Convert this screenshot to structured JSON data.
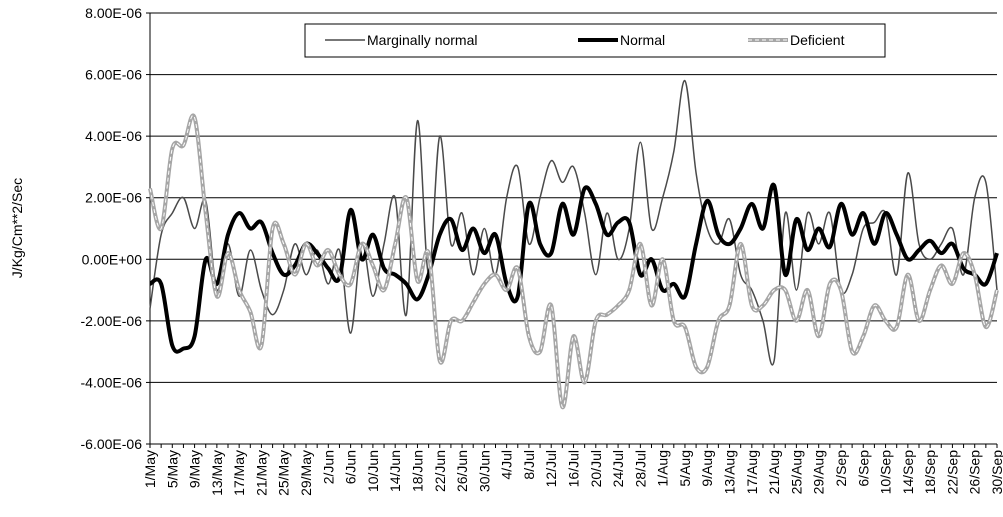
{
  "chart_data": {
    "type": "line",
    "y_label": "J/Kg/Cm**2/Sec",
    "categories": [
      "1/May",
      null,
      "5/May",
      null,
      "9/May",
      null,
      "13/May",
      null,
      "17/May",
      null,
      "21/May",
      null,
      "25/May",
      null,
      "29/May",
      null,
      "2/Jun",
      null,
      "6/Jun",
      null,
      "10/Jun",
      null,
      "14/Jun",
      null,
      "18/Jun",
      null,
      "22/Jun",
      null,
      "26/Jun",
      null,
      "30/Jun",
      null,
      "4/Jul",
      null,
      "8/Jul",
      null,
      "12/Jul",
      null,
      "16/Jul",
      null,
      "20/Jul",
      null,
      "24/Jul",
      null,
      "28/Jul",
      null,
      "1/Aug",
      null,
      "5/Aug",
      null,
      "9/Aug",
      null,
      "13/Aug",
      null,
      "17/Aug",
      null,
      "21/Aug",
      null,
      "25/Aug",
      null,
      "29/Aug",
      null,
      "2/Sep",
      null,
      "6/Sep",
      null,
      "10/Sep",
      null,
      "14/Sep",
      null,
      "18/Sep",
      null,
      "22/Sep",
      null,
      "26/Sep",
      null,
      "30/Sep"
    ],
    "series": [
      {
        "name": "Marginally normal",
        "color": "#4a4a4a",
        "line_width": 1.5,
        "values": [
          -1.6e-06,
          8e-07,
          1.5e-06,
          2e-06,
          1e-06,
          1.9e-06,
          -1e-06,
          5e-07,
          -1.2e-06,
          3e-07,
          -1e-06,
          -1.8e-06,
          -1e-06,
          5e-07,
          -5e-07,
          3e-07,
          -8e-07,
          3e-07,
          -2.4e-06,
          5e-07,
          -1.2e-06,
          5e-07,
          2e-06,
          -1.8e-06,
          4.5e-06,
          -5e-07,
          4e-06,
          5e-07,
          1.5e-06,
          -5e-07,
          1e-06,
          -5e-07,
          2e-06,
          3e-06,
          5e-07,
          2e-06,
          3.2e-06,
          2.5e-06,
          3e-06,
          1.5e-06,
          -5e-07,
          1.5e-06,
          0,
          1e-06,
          3.8e-06,
          1e-06,
          2e-06,
          3.5e-06,
          5.8e-06,
          2.8e-06,
          1e-06,
          5e-07,
          1.3e-06,
          -5e-07,
          -1e-06,
          -2e-06,
          -3.3e-06,
          1.5e-06,
          -1e-06,
          1.5e-06,
          5e-07,
          1.5e-06,
          -1e-06,
          -5e-07,
          1e-06,
          1.2e-06,
          1.5e-06,
          -5e-07,
          2.8e-06,
          5e-07,
          0,
          5e-07,
          1e-06,
          -5e-07,
          2e-06,
          2.5e-06,
          -1e-06
        ]
      },
      {
        "name": "Normal",
        "color": "#000000",
        "line_width": 4,
        "values": [
          -8e-07,
          -8e-07,
          -2.8e-06,
          -2.9e-06,
          -2.5e-06,
          0,
          -8e-07,
          8e-07,
          1.5e-06,
          1e-06,
          1.2e-06,
          2e-07,
          -5e-07,
          -2e-07,
          5e-07,
          2e-07,
          -3e-07,
          -6e-07,
          1.6e-06,
          0,
          8e-07,
          -3e-07,
          -5e-07,
          -8e-07,
          -1.3e-06,
          -5e-07,
          8e-07,
          1.3e-06,
          3e-07,
          1e-06,
          2e-07,
          8e-07,
          -8e-07,
          -1.2e-06,
          1.8e-06,
          5e-07,
          2e-07,
          1.8e-06,
          8e-07,
          2.3e-06,
          1.8e-06,
          8e-07,
          1.2e-06,
          1.2e-06,
          -5e-07,
          0,
          -1e-06,
          -8e-07,
          -1.2e-06,
          5e-07,
          1.9e-06,
          8e-07,
          5e-07,
          1e-06,
          1.8e-06,
          1e-06,
          2.4e-06,
          -5e-07,
          1.3e-06,
          3e-07,
          1e-06,
          4e-07,
          1.8e-06,
          8e-07,
          1.5e-06,
          5e-07,
          1.5e-06,
          8e-07,
          0,
          3e-07,
          6e-07,
          2e-07,
          5e-07,
          -3e-07,
          -5e-07,
          -8e-07,
          2e-07
        ]
      },
      {
        "name": "Deficient",
        "color": "#a6a6a6",
        "line_width": 4,
        "dashed": true,
        "values": [
          2.3e-06,
          1e-06,
          3.6e-06,
          3.7e-06,
          4.6e-06,
          1.5e-06,
          -1.2e-06,
          2e-07,
          -1e-06,
          -1.7e-06,
          -2.8e-06,
          1e-06,
          5e-07,
          -5e-07,
          5e-07,
          -2e-07,
          3e-07,
          -5e-07,
          -8e-07,
          5e-07,
          -2e-07,
          -1e-06,
          5e-07,
          2e-06,
          -7e-07,
          2e-07,
          -3.3e-06,
          -2e-06,
          -2e-06,
          -1.4e-06,
          -8e-07,
          -5e-07,
          -1e-06,
          -3e-07,
          -2.5e-06,
          -3e-06,
          -1.5e-06,
          -4.8e-06,
          -2.5e-06,
          -4e-06,
          -2e-06,
          -1.8e-06,
          -1.5e-06,
          -1e-06,
          5e-07,
          -1.5e-06,
          0,
          -2e-06,
          -2.2e-06,
          -3.5e-06,
          -3.5e-06,
          -2e-06,
          -1.5e-06,
          5e-07,
          -1.5e-06,
          -1.5e-06,
          -1e-06,
          -1e-06,
          -2e-06,
          -1e-06,
          -2.5e-06,
          -8e-07,
          -1e-06,
          -3e-06,
          -2.5e-06,
          -1.5e-06,
          -2e-06,
          -2.2e-06,
          -5e-07,
          -2e-06,
          -1e-06,
          -2e-07,
          -8e-07,
          2e-07,
          -5e-07,
          -2.2e-06,
          -1e-06
        ]
      }
    ],
    "ylim": [
      -6e-06,
      8e-06
    ],
    "yticks": [
      {
        "value": -6e-06,
        "label": "-6.00E-06"
      },
      {
        "value": -4e-06,
        "label": "-4.00E-06"
      },
      {
        "value": -2e-06,
        "label": "-2.00E-06"
      },
      {
        "value": 0,
        "label": "0.00E+00"
      },
      {
        "value": 2e-06,
        "label": "2.00E-06"
      },
      {
        "value": 4e-06,
        "label": "4.00E-06"
      },
      {
        "value": 6e-06,
        "label": "6.00E-06"
      },
      {
        "value": 8e-06,
        "label": "8.00E-06"
      }
    ],
    "grid": true,
    "legend": "top"
  }
}
